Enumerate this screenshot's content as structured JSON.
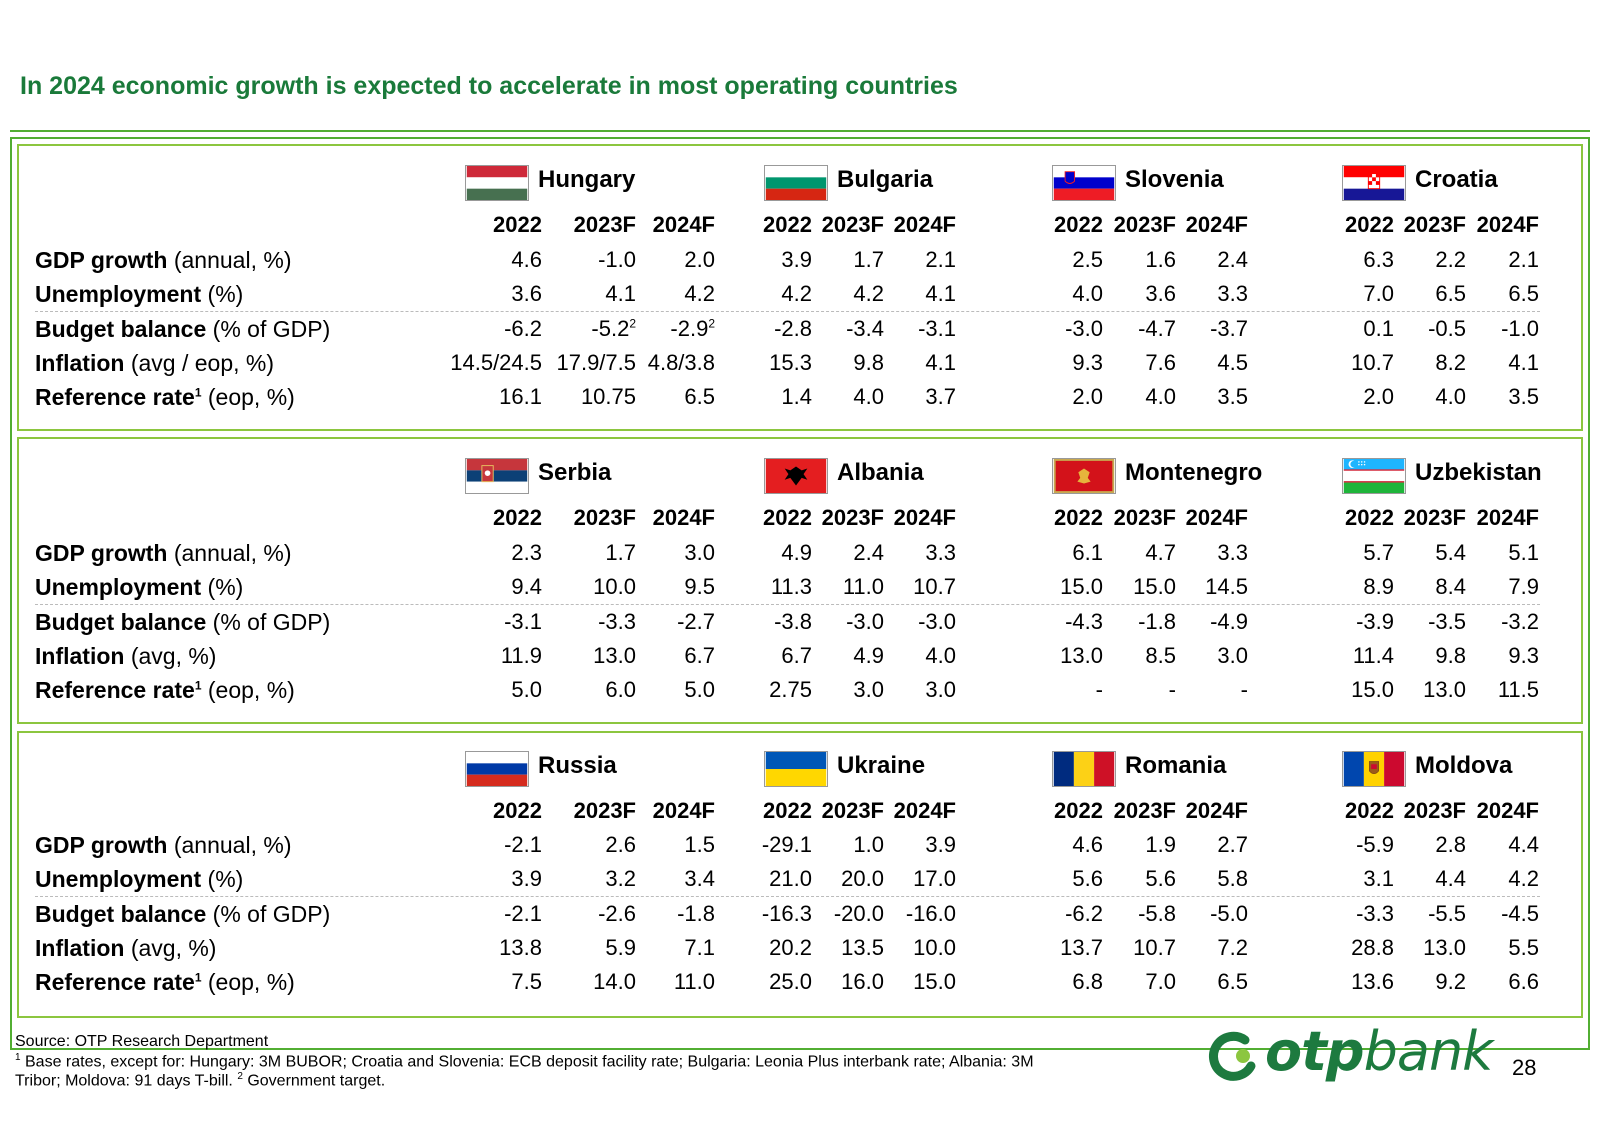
{
  "title": "In 2024 economic growth is expected to accelerate in most operating countries",
  "year_headers": [
    "2022",
    "2023F",
    "2024F"
  ],
  "panels": [
    {
      "rows": [
        {
          "label_bold": "GDP growth",
          "label_rest": " (annual, %)"
        },
        {
          "label_bold": "Unemployment",
          "label_rest": " (%)"
        },
        {
          "label_bold": "Budget balance",
          "label_rest": " (% of GDP)"
        },
        {
          "label_bold": "Inflation",
          "label_rest": " (avg / eop, %)"
        },
        {
          "label_bold": "Reference rate",
          "label_sup": "1",
          "label_rest": " (eop, %)"
        }
      ],
      "countries": [
        {
          "name": "Hungary",
          "flag": "hungary-flag",
          "values": [
            [
              "4.6",
              "-1.0",
              "2.0"
            ],
            [
              "3.6",
              "4.1",
              "4.2"
            ],
            [
              "-6.2",
              "-5.2",
              "-2.9"
            ],
            [
              "14.5/24.5",
              "17.9/7.5",
              "4.8/3.8"
            ],
            [
              "16.1",
              "10.75",
              "6.5"
            ]
          ],
          "sups": {
            "2-1": "2",
            "2-2": "2"
          }
        },
        {
          "name": "Bulgaria",
          "flag": "bulgaria-flag",
          "values": [
            [
              "3.9",
              "1.7",
              "2.1"
            ],
            [
              "4.2",
              "4.2",
              "4.1"
            ],
            [
              "-2.8",
              "-3.4",
              "-3.1"
            ],
            [
              "15.3",
              "9.8",
              "4.1"
            ],
            [
              "1.4",
              "4.0",
              "3.7"
            ]
          ]
        },
        {
          "name": "Slovenia",
          "flag": "slovenia-flag",
          "values": [
            [
              "2.5",
              "1.6",
              "2.4"
            ],
            [
              "4.0",
              "3.6",
              "3.3"
            ],
            [
              "-3.0",
              "-4.7",
              "-3.7"
            ],
            [
              "9.3",
              "7.6",
              "4.5"
            ],
            [
              "2.0",
              "4.0",
              "3.5"
            ]
          ]
        },
        {
          "name": "Croatia",
          "flag": "croatia-flag",
          "values": [
            [
              "6.3",
              "2.2",
              "2.1"
            ],
            [
              "7.0",
              "6.5",
              "6.5"
            ],
            [
              "0.1",
              "-0.5",
              "-1.0"
            ],
            [
              "10.7",
              "8.2",
              "4.1"
            ],
            [
              "2.0",
              "4.0",
              "3.5"
            ]
          ]
        }
      ]
    },
    {
      "rows": [
        {
          "label_bold": "GDP growth",
          "label_rest": " (annual, %)"
        },
        {
          "label_bold": "Unemployment",
          "label_rest": " (%)"
        },
        {
          "label_bold": "Budget balance",
          "label_rest": " (% of GDP)"
        },
        {
          "label_bold": "Inflation",
          "label_rest": " (avg, %)"
        },
        {
          "label_bold": "Reference rate",
          "label_sup": "1",
          "label_rest": " (eop, %)"
        }
      ],
      "countries": [
        {
          "name": "Serbia",
          "flag": "serbia-flag",
          "values": [
            [
              "2.3",
              "1.7",
              "3.0"
            ],
            [
              "9.4",
              "10.0",
              "9.5"
            ],
            [
              "-3.1",
              "-3.3",
              "-2.7"
            ],
            [
              "11.9",
              "13.0",
              "6.7"
            ],
            [
              "5.0",
              "6.0",
              "5.0"
            ]
          ]
        },
        {
          "name": "Albania",
          "flag": "albania-flag",
          "values": [
            [
              "4.9",
              "2.4",
              "3.3"
            ],
            [
              "11.3",
              "11.0",
              "10.7"
            ],
            [
              "-3.8",
              "-3.0",
              "-3.0"
            ],
            [
              "6.7",
              "4.9",
              "4.0"
            ],
            [
              "2.75",
              "3.0",
              "3.0"
            ]
          ]
        },
        {
          "name": "Montenegro",
          "flag": "montenegro-flag",
          "values": [
            [
              "6.1",
              "4.7",
              "3.3"
            ],
            [
              "15.0",
              "15.0",
              "14.5"
            ],
            [
              "-4.3",
              "-1.8",
              "-4.9"
            ],
            [
              "13.0",
              "8.5",
              "3.0"
            ],
            [
              "-",
              "-",
              "-"
            ]
          ]
        },
        {
          "name": "Uzbekistan",
          "flag": "uzbekistan-flag",
          "values": [
            [
              "5.7",
              "5.4",
              "5.1"
            ],
            [
              "8.9",
              "8.4",
              "7.9"
            ],
            [
              "-3.9",
              "-3.5",
              "-3.2"
            ],
            [
              "11.4",
              "9.8",
              "9.3"
            ],
            [
              "15.0",
              "13.0",
              "11.5"
            ]
          ]
        }
      ]
    },
    {
      "rows": [
        {
          "label_bold": "GDP growth",
          "label_rest": " (annual, %)"
        },
        {
          "label_bold": "Unemployment",
          "label_rest": " (%)"
        },
        {
          "label_bold": "Budget balance",
          "label_rest": " (% of GDP)"
        },
        {
          "label_bold": "Inflation",
          "label_rest": " (avg, %)"
        },
        {
          "label_bold": "Reference rate",
          "label_sup": "1",
          "label_rest": " (eop, %)"
        }
      ],
      "countries": [
        {
          "name": "Russia",
          "flag": "russia-flag",
          "values": [
            [
              "-2.1",
              "2.6",
              "1.5"
            ],
            [
              "3.9",
              "3.2",
              "3.4"
            ],
            [
              "-2.1",
              "-2.6",
              "-1.8"
            ],
            [
              "13.8",
              "5.9",
              "7.1"
            ],
            [
              "7.5",
              "14.0",
              "11.0"
            ]
          ]
        },
        {
          "name": "Ukraine",
          "flag": "ukraine-flag",
          "values": [
            [
              "-29.1",
              "1.0",
              "3.9"
            ],
            [
              "21.0",
              "20.0",
              "17.0"
            ],
            [
              "-16.3",
              "-20.0",
              "-16.0"
            ],
            [
              "20.2",
              "13.5",
              "10.0"
            ],
            [
              "25.0",
              "16.0",
              "15.0"
            ]
          ]
        },
        {
          "name": "Romania",
          "flag": "romania-flag",
          "values": [
            [
              "4.6",
              "1.9",
              "2.7"
            ],
            [
              "5.6",
              "5.6",
              "5.8"
            ],
            [
              "-6.2",
              "-5.8",
              "-5.0"
            ],
            [
              "13.7",
              "10.7",
              "7.2"
            ],
            [
              "6.8",
              "7.0",
              "6.5"
            ]
          ]
        },
        {
          "name": "Moldova",
          "flag": "moldova-flag",
          "values": [
            [
              "-5.9",
              "2.8",
              "4.4"
            ],
            [
              "3.1",
              "4.4",
              "4.2"
            ],
            [
              "-3.3",
              "-5.5",
              "-4.5"
            ],
            [
              "28.8",
              "13.0",
              "5.5"
            ],
            [
              "13.6",
              "9.2",
              "6.6"
            ]
          ]
        }
      ]
    }
  ],
  "footnotes": {
    "source": "Source: OTP Research Department",
    "note1_sup": "1",
    "note1_line1": " Base rates, except for: Hungary: 3M BUBOR; Croatia and Slovenia: ECB deposit facility rate; Bulgaria: Leonia Plus interbank rate; Albania: 3M",
    "note1_line2_a": "Tribor; Moldova: 91 days T-bill. ",
    "note2_sup": "2",
    "note2_text": " Government target."
  },
  "logo": {
    "text_bold": "otp",
    "text_light": "bank",
    "color": "#1d7a3f",
    "icon": "otp-logo-icon"
  },
  "page_number": "28",
  "colors": {
    "accent": "#1a7a3a",
    "frame": "#52ae32",
    "panel_border": "#8cc63f"
  }
}
